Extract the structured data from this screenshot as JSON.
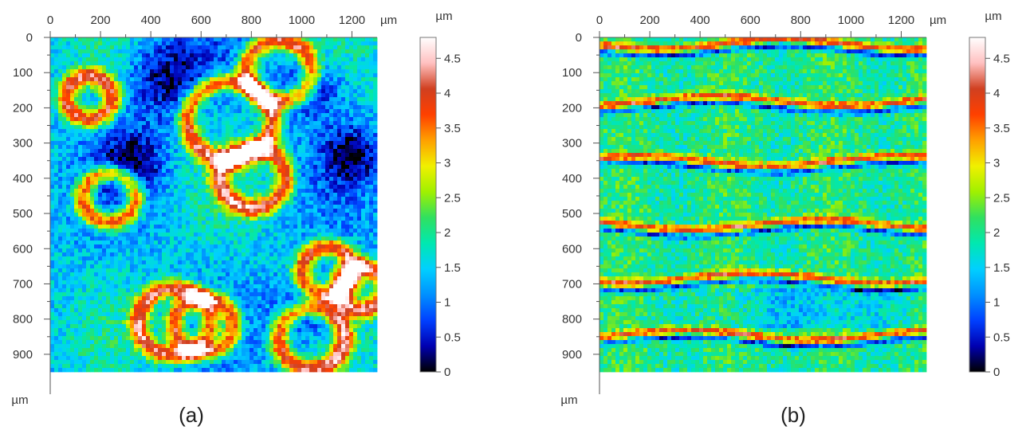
{
  "colorscale": {
    "stops": [
      "#000000",
      "#0000b0",
      "#0040ff",
      "#0090ff",
      "#00d0ff",
      "#00e8b0",
      "#30e060",
      "#a0f000",
      "#f0f000",
      "#ffa000",
      "#ff4000",
      "#d04020",
      "#ffc0c0",
      "#ffffff"
    ]
  },
  "chart_data": [
    {
      "type": "heatmap",
      "panel_label": "(a)",
      "x_unit": "µm",
      "y_unit": "µm",
      "xlim": [
        0,
        1300
      ],
      "ylim": [
        950,
        0
      ],
      "x_ticks": [
        "0",
        "200",
        "400",
        "600",
        "800",
        "1000",
        "1200"
      ],
      "x_tick_values": [
        0,
        200,
        400,
        600,
        800,
        1000,
        1200
      ],
      "y_ticks": [
        "0",
        "100",
        "200",
        "300",
        "400",
        "500",
        "600",
        "700",
        "800",
        "900"
      ],
      "y_tick_values": [
        0,
        100,
        200,
        300,
        400,
        500,
        600,
        700,
        800,
        900
      ],
      "colorbar": {
        "unit": "µm",
        "range": [
          0,
          4.8
        ],
        "ticks": [
          "0",
          "0.5",
          "1",
          "1.5",
          "2",
          "2.5",
          "3",
          "3.5",
          "4",
          "4.5"
        ],
        "tick_values": [
          0,
          0.5,
          1,
          1.5,
          2,
          2.5,
          3,
          3.5,
          4,
          4.5
        ]
      },
      "pattern": "cellular"
    },
    {
      "type": "heatmap",
      "panel_label": "(b)",
      "x_unit": "µm",
      "y_unit": "µm",
      "xlim": [
        0,
        1300
      ],
      "ylim": [
        950,
        0
      ],
      "x_ticks": [
        "0",
        "200",
        "400",
        "600",
        "800",
        "1000",
        "1200"
      ],
      "x_tick_values": [
        0,
        200,
        400,
        600,
        800,
        1000,
        1200
      ],
      "y_ticks": [
        "0",
        "100",
        "200",
        "300",
        "400",
        "500",
        "600",
        "700",
        "800",
        "900"
      ],
      "y_tick_values": [
        0,
        100,
        200,
        300,
        400,
        500,
        600,
        700,
        800,
        900
      ],
      "colorbar": {
        "unit": "µm",
        "range": [
          0,
          4.8
        ],
        "ticks": [
          "0",
          "0.5",
          "1",
          "1.5",
          "2",
          "2.5",
          "3",
          "3.5",
          "4",
          "4.5"
        ],
        "tick_values": [
          0,
          0.5,
          1,
          1.5,
          2,
          2.5,
          3,
          3.5,
          4,
          4.5
        ]
      },
      "pattern": "banded"
    }
  ]
}
